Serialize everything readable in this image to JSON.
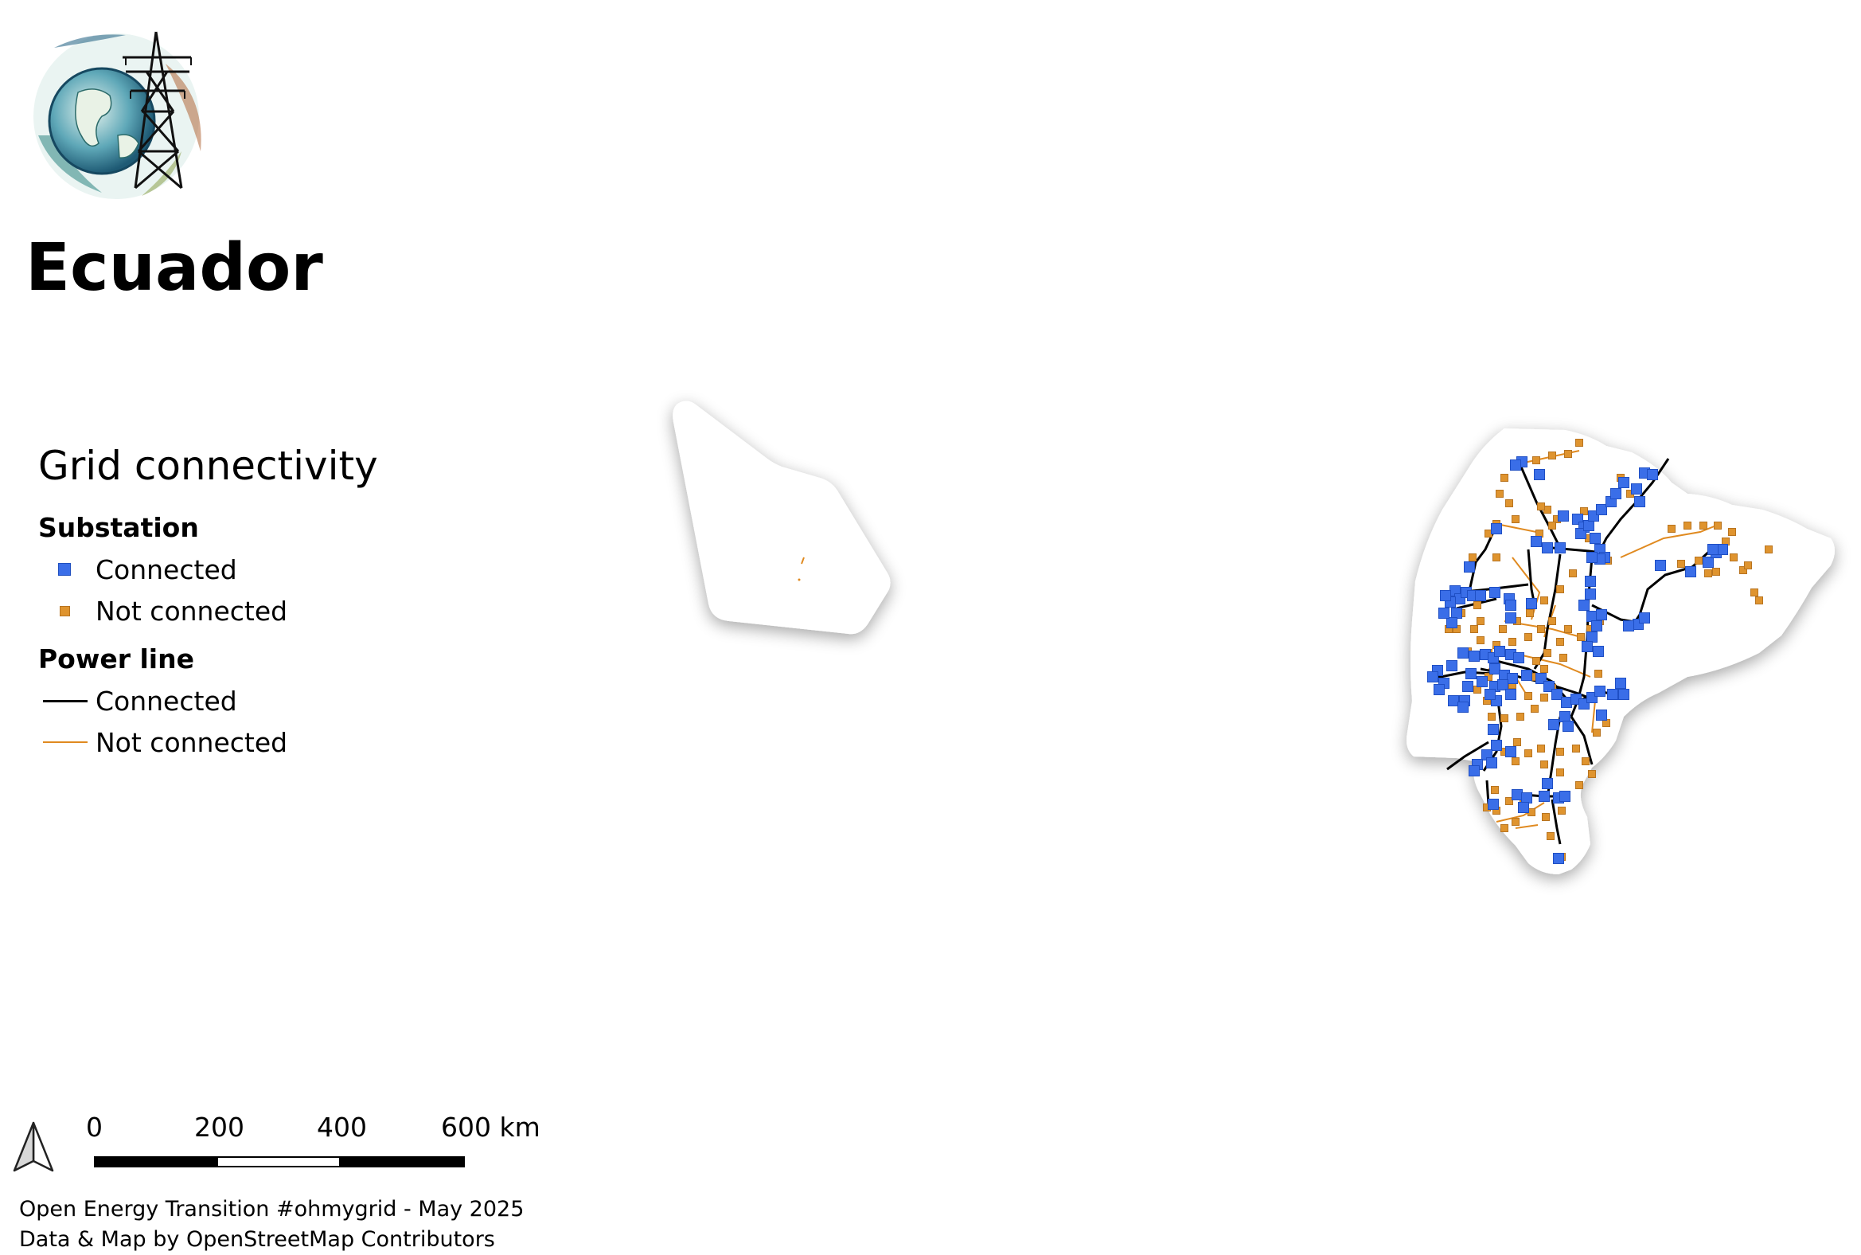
{
  "title": "Ecuador",
  "logo": {
    "icon": "globe-transmission-tower-logo"
  },
  "legend": {
    "title": "Grid connectivity",
    "substation": {
      "heading": "Substation",
      "connected": {
        "label": "Connected",
        "color": "#3a6ee8",
        "icon": "blue-square-icon"
      },
      "not_connected": {
        "label": "Not connected",
        "color": "#df942f",
        "icon": "orange-square-icon"
      }
    },
    "power_line": {
      "heading": "Power line",
      "connected": {
        "label": "Connected",
        "color": "#000000",
        "icon": "black-line-icon"
      },
      "not_connected": {
        "label": "Not connected",
        "color": "#e08a20",
        "icon": "orange-line-icon"
      }
    }
  },
  "scalebar": {
    "labels": [
      "0",
      "200",
      "400",
      "600 km"
    ]
  },
  "north_arrow": {
    "icon": "north-arrow-icon"
  },
  "credits": {
    "line1": "Open Energy Transition #ohmygrid - May 2025",
    "line2": "Data & Map by OpenStreetMap Contributors"
  },
  "colors": {
    "connected_substation": "#3a6ee8",
    "not_connected_substation": "#df942f",
    "connected_line": "#000000",
    "not_connected_line": "#e08a20",
    "land": "#ffffff",
    "shadow": "#c8c8c8"
  }
}
